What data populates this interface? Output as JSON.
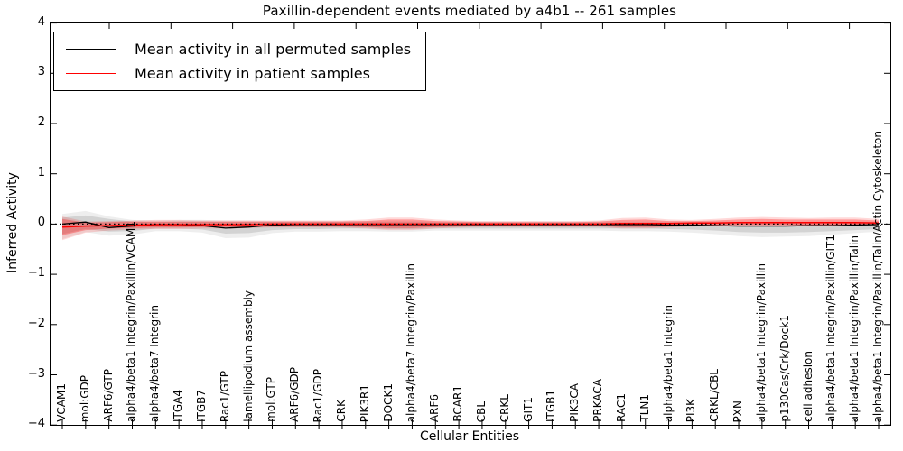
{
  "title": "Paxillin-dependent events mediated by a4b1 -- 261 samples",
  "axes": {
    "ylabel": "Inferred Activity",
    "xlabel": "Cellular Entities",
    "ylim": [
      -4,
      4
    ],
    "y_ticks": [
      4,
      3,
      2,
      1,
      0,
      -1,
      -2,
      -3,
      -4
    ],
    "y_tick_labels": [
      "4",
      "3",
      "2",
      "1",
      "0",
      "−1",
      "−2",
      "−3",
      "−4"
    ]
  },
  "legend": {
    "position": "upper-left",
    "entries": [
      "Mean activity in all permuted samples",
      "Mean activity in patient samples"
    ]
  },
  "chart_data": {
    "type": "line",
    "title": "Paxillin-dependent events mediated by a4b1 -- 261 samples",
    "xlabel": "Cellular Entities",
    "ylabel": "Inferred Activity",
    "ylim": [
      -4,
      4
    ],
    "grid": false,
    "zero_line": {
      "style": "dotted",
      "color": "#000000",
      "y": 0
    },
    "categories": [
      "VCAM1",
      "mol:GDP",
      "ARF6/GTP",
      "alpha4/beta1 Integrin/Paxillin/VCAM1",
      "alpha4/beta7 Integrin",
      "ITGA4",
      "ITGB7",
      "Rac1/GTP",
      "lamellipodium assembly",
      "mol:GTP",
      "ARF6/GDP",
      "Rac1/GDP",
      "CRK",
      "PIK3R1",
      "DOCK1",
      "alpha4/beta7 Integrin/Paxillin",
      "ARF6",
      "BCAR1",
      "CBL",
      "CRKL",
      "GIT1",
      "ITGB1",
      "PIK3CA",
      "PRKACA",
      "RAC1",
      "TLN1",
      "alpha4/beta1 Integrin",
      "PI3K",
      "CRKL/CBL",
      "PXN",
      "alpha4/beta1 Integrin/Paxillin",
      "p130Cas/Crk/Dock1",
      "cell adhesion",
      "alpha4/beta1 Integrin/Paxillin/GIT1",
      "alpha4/beta1 Integrin/Paxillin/Talin",
      "alpha4/beta1 Integrin/Paxillin/Talin/Actin Cytoskeleton"
    ],
    "series": [
      {
        "name": "Mean activity in all permuted samples",
        "color": "#000000",
        "width": 1.3,
        "values": [
          0.0,
          0.04,
          -0.07,
          -0.04,
          -0.01,
          -0.01,
          -0.03,
          -0.08,
          -0.06,
          -0.02,
          -0.01,
          -0.01,
          -0.01,
          -0.01,
          -0.01,
          -0.01,
          -0.01,
          -0.01,
          -0.01,
          -0.01,
          -0.01,
          -0.01,
          -0.01,
          -0.01,
          -0.01,
          -0.01,
          -0.02,
          -0.02,
          -0.03,
          -0.04,
          -0.04,
          -0.04,
          -0.03,
          -0.03,
          -0.02,
          -0.01
        ]
      },
      {
        "name": "Mean activity in patient samples",
        "color": "#ff0000",
        "width": 1.5,
        "values": [
          -0.06,
          -0.04,
          -0.03,
          -0.02,
          -0.01,
          -0.01,
          -0.01,
          -0.01,
          -0.01,
          0.0,
          0.0,
          0.0,
          0.0,
          0.0,
          0.0,
          0.0,
          0.0,
          0.0,
          0.0,
          0.0,
          0.0,
          0.0,
          0.0,
          0.0,
          0.01,
          0.01,
          0.01,
          0.02,
          0.02,
          0.03,
          0.03,
          0.03,
          0.03,
          0.03,
          0.03,
          0.02
        ]
      }
    ],
    "bands": [
      {
        "name": "permuted-outer",
        "color": "#888888",
        "opacity": 0.14,
        "upper": [
          0.2,
          0.26,
          0.15,
          0.08,
          0.07,
          0.08,
          0.08,
          0.07,
          0.07,
          0.06,
          0.06,
          0.06,
          0.06,
          0.06,
          0.06,
          0.06,
          0.05,
          0.05,
          0.05,
          0.05,
          0.05,
          0.05,
          0.05,
          0.05,
          0.05,
          0.05,
          0.05,
          0.05,
          0.05,
          0.05,
          0.05,
          0.05,
          0.05,
          0.05,
          0.05,
          0.05
        ],
        "lower": [
          -0.3,
          -0.16,
          -0.23,
          -0.21,
          -0.14,
          -0.14,
          -0.17,
          -0.28,
          -0.27,
          -0.18,
          -0.15,
          -0.15,
          -0.14,
          -0.14,
          -0.15,
          -0.15,
          -0.13,
          -0.13,
          -0.13,
          -0.13,
          -0.13,
          -0.13,
          -0.13,
          -0.13,
          -0.14,
          -0.14,
          -0.15,
          -0.17,
          -0.2,
          -0.24,
          -0.26,
          -0.25,
          -0.24,
          -0.21,
          -0.18,
          -0.15
        ]
      },
      {
        "name": "permuted-inner",
        "color": "#777777",
        "opacity": 0.22,
        "upper": [
          0.13,
          0.17,
          0.1,
          0.05,
          0.04,
          0.05,
          0.05,
          0.04,
          0.04,
          0.04,
          0.04,
          0.04,
          0.04,
          0.04,
          0.04,
          0.04,
          0.03,
          0.03,
          0.03,
          0.03,
          0.03,
          0.03,
          0.03,
          0.03,
          0.03,
          0.03,
          0.03,
          0.03,
          0.03,
          0.03,
          0.03,
          0.03,
          0.03,
          0.03,
          0.03,
          0.03
        ],
        "lower": [
          -0.2,
          -0.1,
          -0.15,
          -0.14,
          -0.09,
          -0.09,
          -0.11,
          -0.19,
          -0.18,
          -0.12,
          -0.1,
          -0.1,
          -0.09,
          -0.09,
          -0.1,
          -0.1,
          -0.09,
          -0.09,
          -0.09,
          -0.09,
          -0.09,
          -0.09,
          -0.09,
          -0.09,
          -0.09,
          -0.09,
          -0.1,
          -0.11,
          -0.13,
          -0.16,
          -0.17,
          -0.17,
          -0.16,
          -0.14,
          -0.12,
          -0.1
        ]
      },
      {
        "name": "patient-outer",
        "color": "#ff0000",
        "opacity": 0.15,
        "upper": [
          0.15,
          0.05,
          0.06,
          0.07,
          0.08,
          0.08,
          0.07,
          0.07,
          0.07,
          0.07,
          0.07,
          0.07,
          0.07,
          0.09,
          0.13,
          0.13,
          0.09,
          0.07,
          0.06,
          0.06,
          0.06,
          0.06,
          0.06,
          0.07,
          0.12,
          0.13,
          0.09,
          0.08,
          0.1,
          0.13,
          0.14,
          0.13,
          0.12,
          0.13,
          0.13,
          0.1
        ],
        "lower": [
          -0.32,
          -0.17,
          -0.13,
          -0.11,
          -0.1,
          -0.1,
          -0.09,
          -0.09,
          -0.08,
          -0.07,
          -0.07,
          -0.07,
          -0.07,
          -0.09,
          -0.12,
          -0.12,
          -0.09,
          -0.07,
          -0.06,
          -0.06,
          -0.06,
          -0.06,
          -0.06,
          -0.06,
          -0.09,
          -0.09,
          -0.07,
          -0.05,
          -0.03,
          -0.03,
          -0.03,
          -0.03,
          -0.03,
          -0.03,
          -0.03,
          -0.02
        ]
      },
      {
        "name": "patient-inner",
        "color": "#ff0000",
        "opacity": 0.3,
        "upper": [
          0.1,
          0.03,
          0.04,
          0.05,
          0.05,
          0.05,
          0.05,
          0.05,
          0.05,
          0.05,
          0.05,
          0.05,
          0.05,
          0.06,
          0.09,
          0.09,
          0.06,
          0.05,
          0.04,
          0.04,
          0.04,
          0.04,
          0.04,
          0.05,
          0.08,
          0.09,
          0.06,
          0.06,
          0.07,
          0.09,
          0.1,
          0.09,
          0.09,
          0.09,
          0.09,
          0.07
        ],
        "lower": [
          -0.22,
          -0.12,
          -0.09,
          -0.08,
          -0.07,
          -0.07,
          -0.06,
          -0.06,
          -0.06,
          -0.05,
          -0.05,
          -0.05,
          -0.05,
          -0.06,
          -0.08,
          -0.08,
          -0.06,
          -0.05,
          -0.04,
          -0.04,
          -0.04,
          -0.04,
          -0.04,
          -0.04,
          -0.06,
          -0.06,
          -0.05,
          -0.03,
          -0.02,
          -0.02,
          -0.02,
          -0.02,
          -0.02,
          -0.02,
          -0.02,
          -0.01
        ]
      }
    ]
  }
}
